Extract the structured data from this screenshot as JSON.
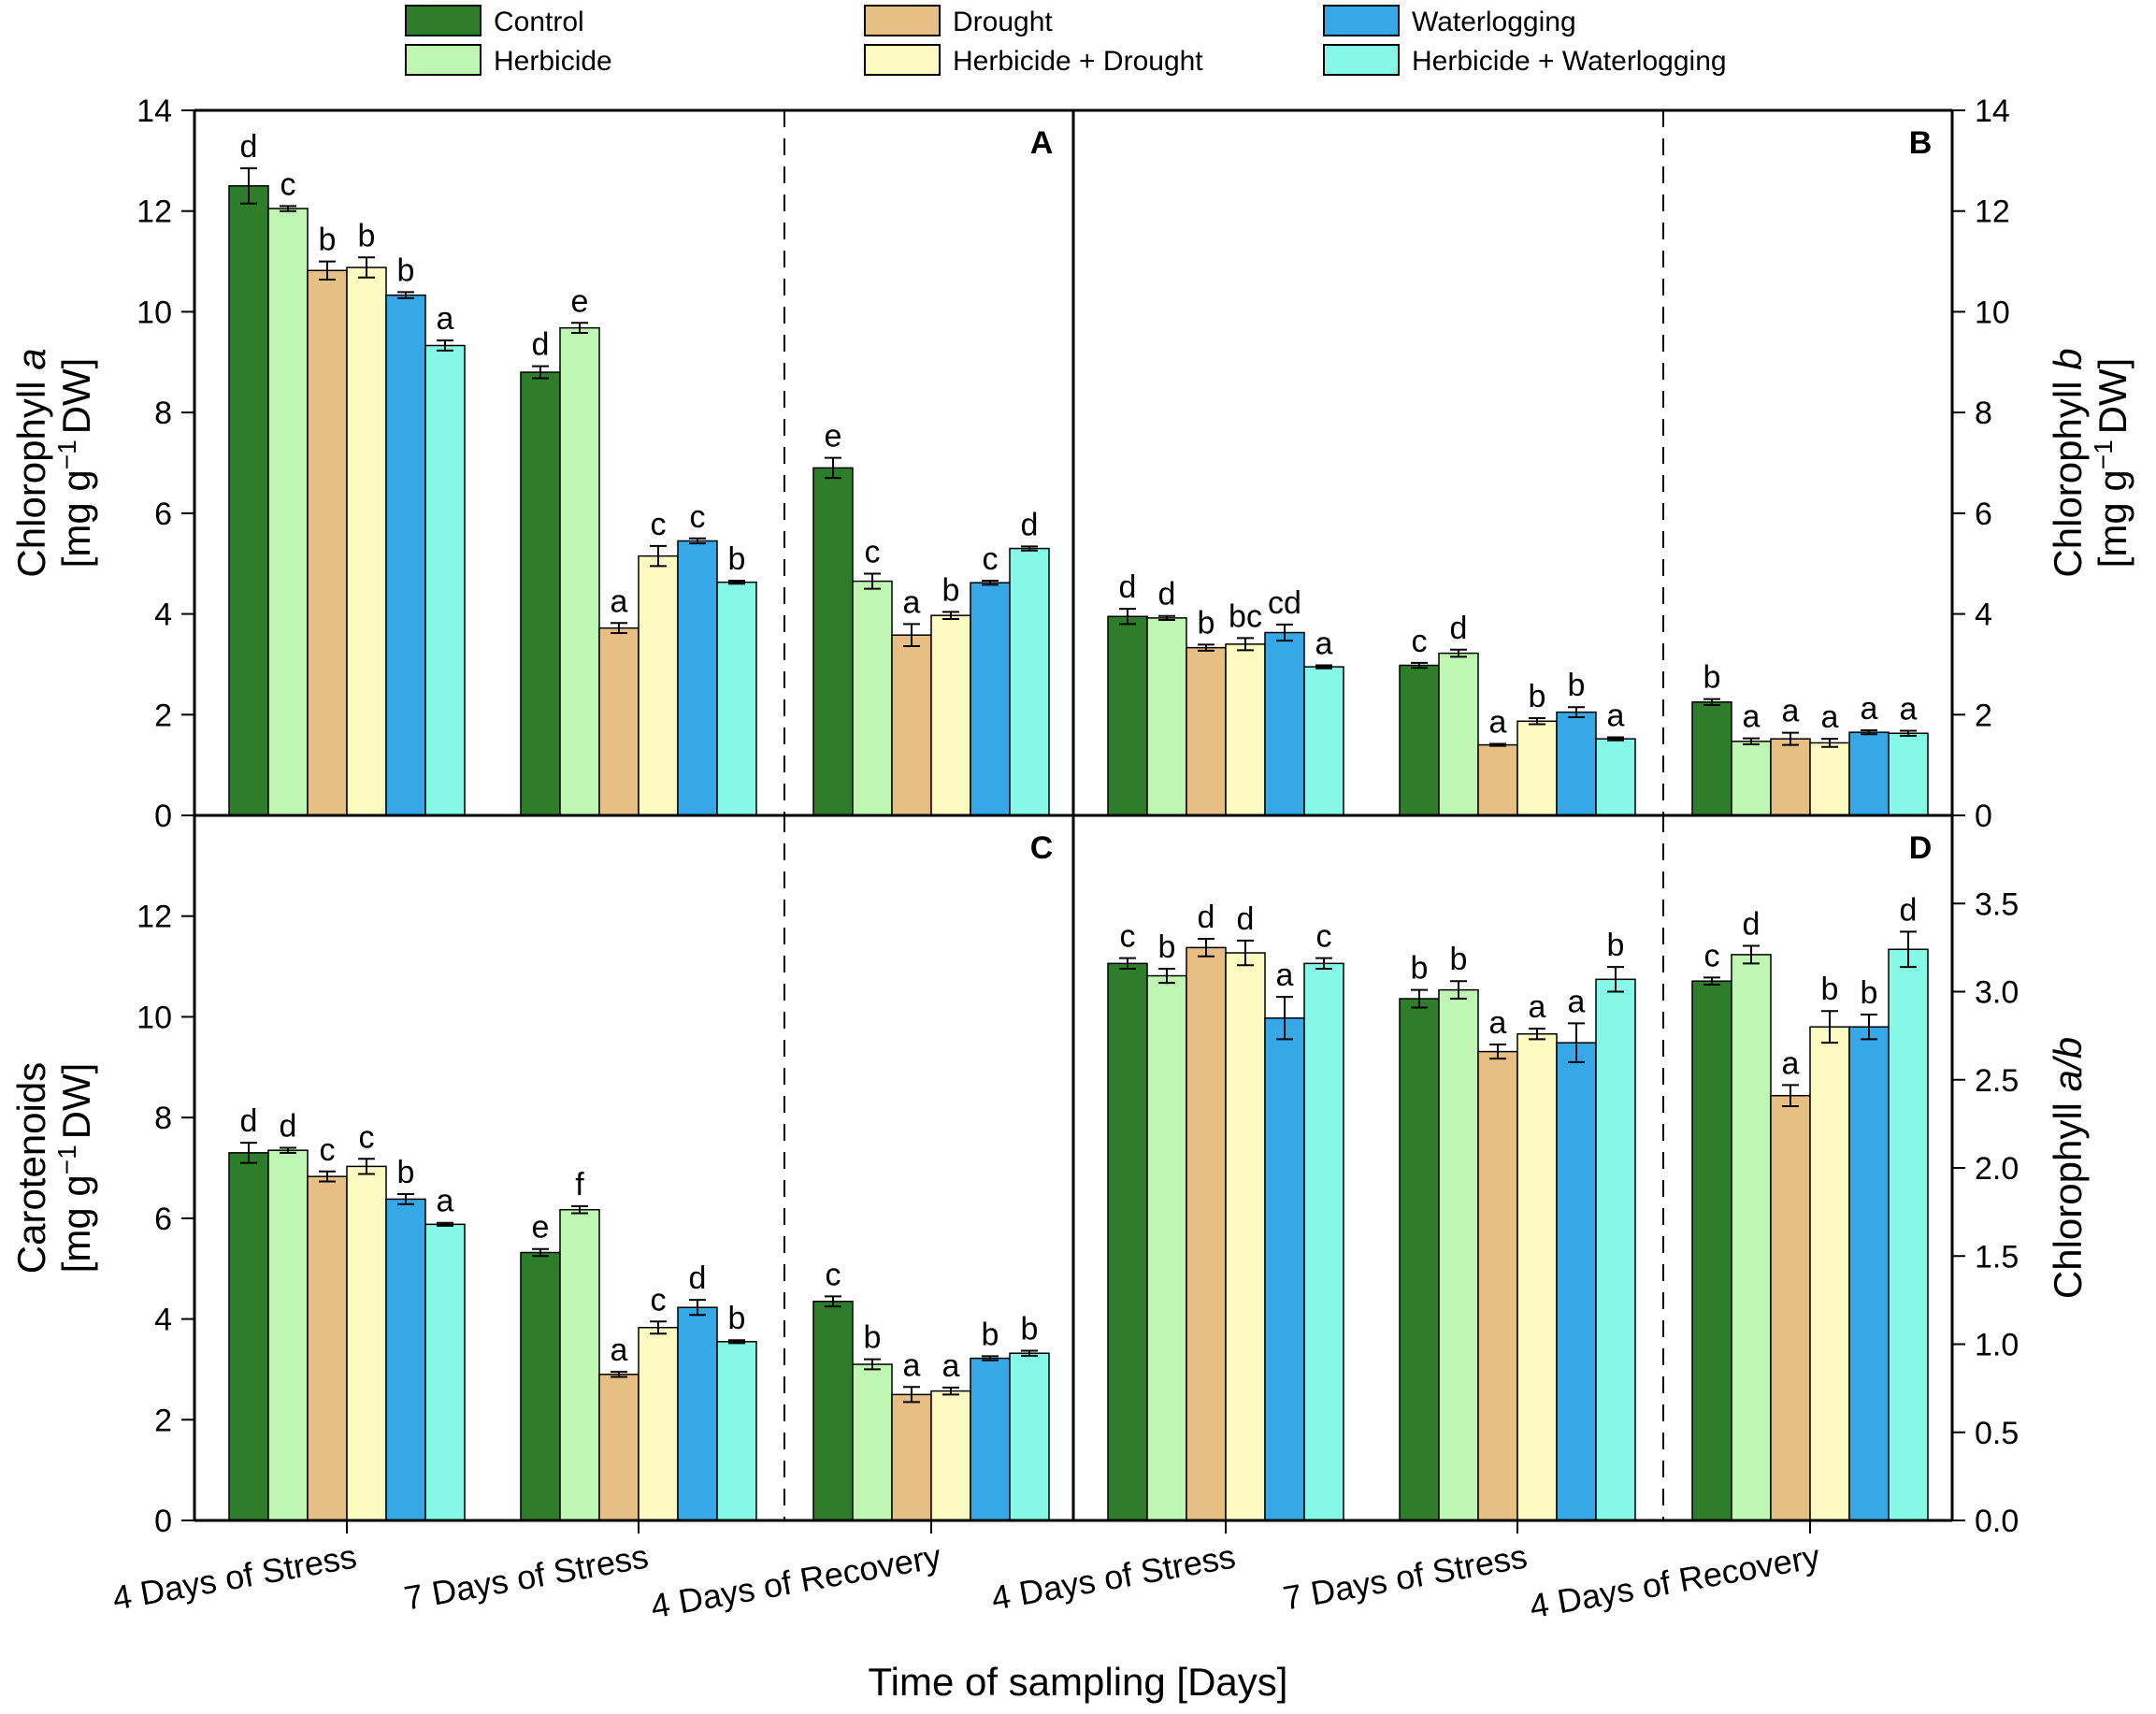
{
  "chart_data": {
    "type": "bar",
    "xlabel": "Time of sampling [Days]",
    "categories": [
      "4 Days of Stress",
      "7 Days of Stress",
      "4 Days of Recovery"
    ],
    "legend": {
      "placement": "top",
      "entries": [
        {
          "name": "Control",
          "color": "#2e7d2a"
        },
        {
          "name": "Herbicide",
          "color": "#bff7b2"
        },
        {
          "name": "Drought",
          "color": "#e7be84"
        },
        {
          "name": "Herbicide + Drought",
          "color": "#fdfbc2"
        },
        {
          "name": "Waterlogging",
          "color": "#36a8e8"
        },
        {
          "name": "Herbicide + Waterlogging",
          "color": "#86f8e8"
        }
      ]
    },
    "panels": [
      {
        "id": "A",
        "ylabel_line1": "Chlorophyll ",
        "ylabel_italic": "a",
        "ylabel_line2": "[mg g",
        "ylabel_sup": "−1",
        "ylabel_tail": "DW]",
        "ylim": [
          0,
          14
        ],
        "yticks": [
          "0",
          "2",
          "4",
          "6",
          "8",
          "10",
          "12",
          "14"
        ],
        "series": [
          {
            "name": "Control",
            "values": [
              12.5,
              8.8,
              6.9
            ],
            "err": [
              0.35,
              0.12,
              0.2
            ],
            "letters": [
              "d",
              "d",
              "e"
            ]
          },
          {
            "name": "Herbicide",
            "values": [
              12.05,
              9.68,
              4.65
            ],
            "err": [
              0.05,
              0.1,
              0.15
            ],
            "letters": [
              "c",
              "e",
              "c"
            ]
          },
          {
            "name": "Drought",
            "values": [
              10.82,
              3.72,
              3.58
            ],
            "err": [
              0.18,
              0.1,
              0.22
            ],
            "letters": [
              "b",
              "a",
              "a"
            ]
          },
          {
            "name": "Herbicide + Drought",
            "values": [
              10.88,
              5.15,
              3.97
            ],
            "err": [
              0.2,
              0.2,
              0.07
            ],
            "letters": [
              "b",
              "c",
              "b"
            ]
          },
          {
            "name": "Waterlogging",
            "values": [
              10.33,
              5.45,
              4.62
            ],
            "err": [
              0.06,
              0.05,
              0.04
            ],
            "letters": [
              "b",
              "c",
              "c"
            ]
          },
          {
            "name": "Herbicide + Waterlogging",
            "values": [
              9.33,
              4.63,
              5.3
            ],
            "err": [
              0.1,
              0.03,
              0.04
            ],
            "letters": [
              "a",
              "b",
              "d"
            ]
          }
        ]
      },
      {
        "id": "B",
        "ylabel_line1": "Chlorophyll ",
        "ylabel_italic": "b",
        "ylabel_line2": "[mg g",
        "ylabel_sup": "−1",
        "ylabel_tail": "DW]",
        "ylim": [
          0,
          14
        ],
        "yticks": [
          "0",
          "2",
          "4",
          "6",
          "8",
          "10",
          "12",
          "14"
        ],
        "series": [
          {
            "name": "Control",
            "values": [
              3.95,
              2.98,
              2.25
            ],
            "err": [
              0.15,
              0.05,
              0.06
            ],
            "letters": [
              "d",
              "c",
              "b"
            ]
          },
          {
            "name": "Herbicide",
            "values": [
              3.92,
              3.22,
              1.47
            ],
            "err": [
              0.04,
              0.07,
              0.06
            ],
            "letters": [
              "d",
              "d",
              "a"
            ]
          },
          {
            "name": "Drought",
            "values": [
              3.33,
              1.4,
              1.52
            ],
            "err": [
              0.06,
              0.02,
              0.12
            ],
            "letters": [
              "b",
              "a",
              "a"
            ]
          },
          {
            "name": "Herbicide + Drought",
            "values": [
              3.4,
              1.87,
              1.44
            ],
            "err": [
              0.12,
              0.06,
              0.08
            ],
            "letters": [
              "bc",
              "b",
              "a"
            ]
          },
          {
            "name": "Waterlogging",
            "values": [
              3.63,
              2.05,
              1.65
            ],
            "err": [
              0.16,
              0.1,
              0.04
            ],
            "letters": [
              "cd",
              "b",
              "a"
            ]
          },
          {
            "name": "Herbicide + Waterlogging",
            "values": [
              2.95,
              1.52,
              1.63
            ],
            "err": [
              0.03,
              0.03,
              0.05
            ],
            "letters": [
              "a",
              "a",
              "a"
            ]
          }
        ]
      },
      {
        "id": "C",
        "ylabel_line1": "Carotenoids",
        "ylabel_italic": "",
        "ylabel_line2": "[mg g",
        "ylabel_sup": "−1",
        "ylabel_tail": "DW]",
        "ylim": [
          0,
          14
        ],
        "yticks": [
          "0",
          "2",
          "4",
          "6",
          "8",
          "10",
          "12"
        ],
        "series": [
          {
            "name": "Control",
            "values": [
              7.3,
              5.32,
              4.35
            ],
            "err": [
              0.2,
              0.07,
              0.1
            ],
            "letters": [
              "d",
              "e",
              "c"
            ]
          },
          {
            "name": "Herbicide",
            "values": [
              7.35,
              6.17,
              3.1
            ],
            "err": [
              0.05,
              0.07,
              0.1
            ],
            "letters": [
              "d",
              "f",
              "b"
            ]
          },
          {
            "name": "Drought",
            "values": [
              6.83,
              2.9,
              2.5
            ],
            "err": [
              0.1,
              0.05,
              0.15
            ],
            "letters": [
              "c",
              "a",
              "a"
            ]
          },
          {
            "name": "Herbicide + Drought",
            "values": [
              7.03,
              3.83,
              2.57
            ],
            "err": [
              0.15,
              0.12,
              0.07
            ],
            "letters": [
              "c",
              "c",
              "a"
            ]
          },
          {
            "name": "Waterlogging",
            "values": [
              6.38,
              4.23,
              3.22
            ],
            "err": [
              0.1,
              0.15,
              0.04
            ],
            "letters": [
              "b",
              "d",
              "b"
            ]
          },
          {
            "name": "Herbicide + Waterlogging",
            "values": [
              5.88,
              3.55,
              3.32
            ],
            "err": [
              0.03,
              0.03,
              0.05
            ],
            "letters": [
              "a",
              "b",
              "b"
            ]
          }
        ]
      },
      {
        "id": "D",
        "ylabel_line1": "Chlorophyll ",
        "ylabel_italic": "a/b",
        "ylabel_line2": "",
        "ylabel_sup": "",
        "ylabel_tail": "",
        "ylim": [
          0,
          4
        ],
        "yticks": [
          "0.0",
          "0.5",
          "1.0",
          "1.5",
          "2.0",
          "2.5",
          "3.0",
          "3.5"
        ],
        "series": [
          {
            "name": "Control",
            "values": [
              3.16,
              2.96,
              3.06
            ],
            "err": [
              0.03,
              0.05,
              0.02
            ],
            "letters": [
              "c",
              "b",
              "c"
            ]
          },
          {
            "name": "Herbicide",
            "values": [
              3.09,
              3.01,
              3.21
            ],
            "err": [
              0.04,
              0.05,
              0.05
            ],
            "letters": [
              "b",
              "b",
              "d"
            ]
          },
          {
            "name": "Drought",
            "values": [
              3.25,
              2.66,
              2.41
            ],
            "err": [
              0.05,
              0.04,
              0.06
            ],
            "letters": [
              "d",
              "a",
              "a"
            ]
          },
          {
            "name": "Herbicide + Drought",
            "values": [
              3.22,
              2.76,
              2.8
            ],
            "err": [
              0.07,
              0.03,
              0.09
            ],
            "letters": [
              "d",
              "a",
              "b"
            ]
          },
          {
            "name": "Waterlogging",
            "values": [
              2.85,
              2.71,
              2.8
            ],
            "err": [
              0.12,
              0.11,
              0.07
            ],
            "letters": [
              "a",
              "a",
              "b"
            ]
          },
          {
            "name": "Herbicide + Waterlogging",
            "values": [
              3.16,
              3.07,
              3.24
            ],
            "err": [
              0.03,
              0.07,
              0.1
            ],
            "letters": [
              "c",
              "b",
              "d"
            ]
          }
        ]
      }
    ]
  }
}
